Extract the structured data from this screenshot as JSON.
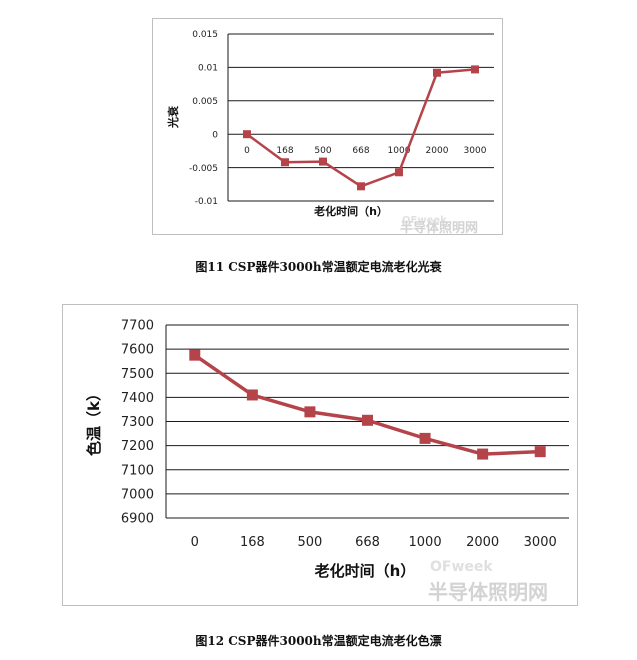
{
  "chart_data": [
    {
      "type": "line",
      "title": "",
      "xlabel": "老化时间（h）",
      "ylabel": "光衰",
      "categories": [
        "0",
        "168",
        "500",
        "668",
        "1000",
        "2000",
        "3000"
      ],
      "series": [
        {
          "values": [
            0,
            -0.0042,
            -0.0041,
            -0.0078,
            -0.0057,
            0.0092,
            0.0097
          ]
        }
      ],
      "ylim": [
        -0.01,
        0.015
      ],
      "yticks": [
        "0.015",
        "0.01",
        "0.005",
        "0",
        "-0.005",
        "-0.01"
      ],
      "ytick_values": [
        0.015,
        0.01,
        0.005,
        0,
        -0.005,
        -0.01
      ],
      "grid": true,
      "legend": "none",
      "color": "#b5444a"
    },
    {
      "type": "line",
      "title": "",
      "xlabel": "老化时间（h）",
      "ylabel": "色温（k）",
      "categories": [
        "0",
        "168",
        "500",
        "668",
        "1000",
        "2000",
        "3000"
      ],
      "series": [
        {
          "values": [
            7575,
            7410,
            7340,
            7305,
            7230,
            7165,
            7175
          ]
        }
      ],
      "ylim": [
        6900,
        7700
      ],
      "yticks": [
        "7700",
        "7600",
        "7500",
        "7400",
        "7300",
        "7200",
        "7100",
        "7000",
        "6900"
      ],
      "ytick_values": [
        7700,
        7600,
        7500,
        7400,
        7300,
        7200,
        7100,
        7000,
        6900
      ],
      "grid": true,
      "legend": "none",
      "color": "#b5444a"
    }
  ],
  "captions": {
    "fig11": "图11 CSP器件3000h常温额定电流老化光衰",
    "fig12": "图12 CSP器件3000h常温额定电流老化色漂"
  },
  "watermarks": {
    "brand": "OFweek",
    "site": "半导体照明网"
  }
}
